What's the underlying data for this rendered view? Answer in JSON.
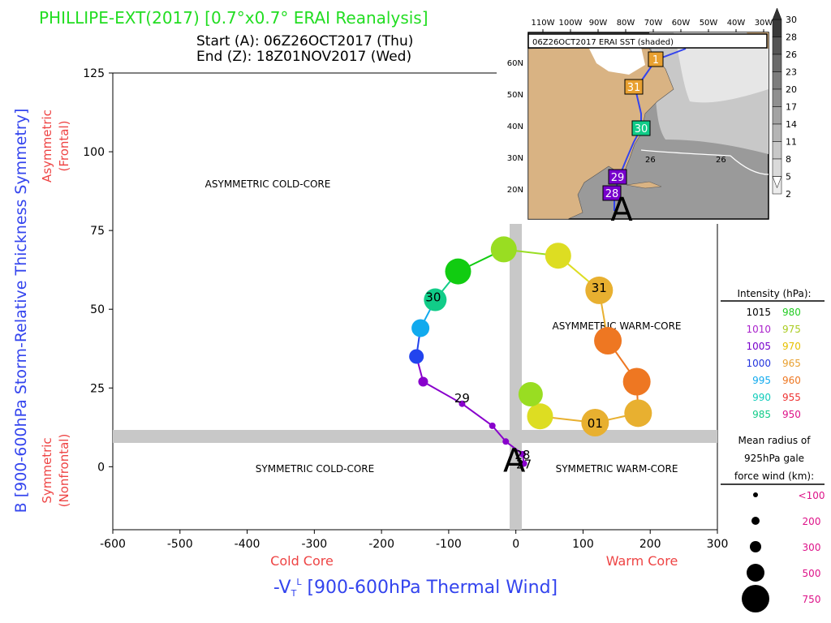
{
  "header": {
    "title": "PHILLIPE-EXT(2017) [0.7°x0.7° ERAI Reanalysis]",
    "start": "Start (A): 06Z26OCT2017 (Thu)",
    "end": "End (Z): 18Z01NOV2017 (Wed)"
  },
  "chart_data": {
    "type": "scatter",
    "title": "PHILLIPE-EXT(2017) [0.7°x0.7° ERAI Reanalysis]",
    "xlabel": "-VTL [900-600hPa Thermal Wind]",
    "xlabel_main": "-V",
    "xlabel_sub": "T",
    "xlabel_sup": "L",
    "xlabel_rest": " [900-600hPa Thermal Wind]",
    "ylabel": "B [900-600hPa Storm-Relative Thickness Symmetry]",
    "xlim": [
      -600,
      300
    ],
    "ylim": [
      -20,
      125
    ],
    "xticks": [
      -600,
      -500,
      -400,
      -300,
      -200,
      -100,
      0,
      100,
      200,
      300
    ],
    "yticks": [
      0,
      25,
      50,
      75,
      100,
      125
    ],
    "left_annotations": {
      "asym": "Asymmetric",
      "asym_sub": "(Frontal)",
      "sym": "Symmetric",
      "sym_sub": "(Nonfrontal)"
    },
    "bottom_annotations": {
      "cold": "Cold Core",
      "warm": "Warm Core"
    },
    "quadrants": {
      "asym_cold": "ASYMMETRIC COLD-CORE",
      "asym_warm": "ASYMMETRIC WARM-CORE",
      "sym_cold": "SYMMETRIC COLD-CORE",
      "sym_warm": "SYMMETRIC WARM-CORE"
    },
    "track": [
      {
        "x": 12,
        "y": 1,
        "r": 4,
        "color": "#8800cc"
      },
      {
        "x": 10,
        "y": 4,
        "r": 4,
        "color": "#8800cc"
      },
      {
        "x": -15,
        "y": 8,
        "r": 4,
        "color": "#8800cc"
      },
      {
        "x": -35,
        "y": 13,
        "r": 4,
        "color": "#8800cc"
      },
      {
        "x": -80,
        "y": 20,
        "r": 4,
        "color": "#8800cc"
      },
      {
        "x": -138,
        "y": 27,
        "r": 6,
        "color": "#8800cc"
      },
      {
        "x": -148,
        "y": 35,
        "r": 9,
        "color": "#2244ee"
      },
      {
        "x": -142,
        "y": 44,
        "r": 11,
        "color": "#11aaee"
      },
      {
        "x": -120,
        "y": 53,
        "r": 14,
        "color": "#11cc88"
      },
      {
        "x": -86,
        "y": 62,
        "r": 16,
        "color": "#11cc11"
      },
      {
        "x": -18,
        "y": 69,
        "r": 16,
        "color": "#99dd22"
      },
      {
        "x": 63,
        "y": 67,
        "r": 16,
        "color": "#dddd22"
      },
      {
        "x": 124,
        "y": 56,
        "r": 17,
        "color": "#e8b030"
      },
      {
        "x": 137,
        "y": 40,
        "r": 17,
        "color": "#ee7722"
      },
      {
        "x": 180,
        "y": 27,
        "r": 17,
        "color": "#ee7722"
      },
      {
        "x": 182,
        "y": 17,
        "r": 17,
        "color": "#e8b030"
      },
      {
        "x": 118,
        "y": 14,
        "r": 17,
        "color": "#e8b030"
      },
      {
        "x": 36,
        "y": 16,
        "r": 16,
        "color": "#dddd22"
      },
      {
        "x": 22,
        "y": 23,
        "r": 15,
        "color": "#99dd22"
      }
    ],
    "track_line_colors": [
      "#8800cc",
      "#8800cc",
      "#8800cc",
      "#8800cc",
      "#8800cc",
      "#8800cc",
      "#2244ee",
      "#11aaee",
      "#11cc88",
      "#11cc11",
      "#99dd22",
      "#dddd22",
      "#e8b030",
      "#ee7722",
      "#ee7722",
      "#e8b030",
      "#e8b030",
      "#dddd22"
    ],
    "date_labels": [
      {
        "text": "29",
        "x": -80,
        "y": 22
      },
      {
        "text": "30",
        "x": -123,
        "y": 54
      },
      {
        "text": "31",
        "x": 124,
        "y": 57
      },
      {
        "text": "01",
        "x": 118,
        "y": 14
      },
      {
        "text": "28",
        "x": 10,
        "y": 4
      },
      {
        "text": "27",
        "x": 12,
        "y": 1
      }
    ],
    "start_marker": {
      "text": "A",
      "x": 0,
      "y": 1
    }
  },
  "legend": {
    "intensity_title": "Intensity (hPa):",
    "intensity": [
      {
        "v1": "1015",
        "c1": "#000000",
        "v2": "980",
        "c2": "#22cc22"
      },
      {
        "v1": "1010",
        "c1": "#aa22cc",
        "v2": "975",
        "c2": "#aacc22"
      },
      {
        "v1": "1005",
        "c1": "#7700cc",
        "v2": "970",
        "c2": "#e6c000"
      },
      {
        "v1": "1000",
        "c1": "#2233dd",
        "v2": "965",
        "c2": "#e8a030"
      },
      {
        "v1": "995",
        "c1": "#11aaee",
        "v2": "960",
        "c2": "#ee7722"
      },
      {
        "v1": "990",
        "c1": "#11ccbb",
        "v2": "955",
        "c2": "#ee3333"
      },
      {
        "v1": "985",
        "c1": "#11cc88",
        "v2": "950",
        "c2": "#dd1188"
      }
    ],
    "radius_title_1": "Mean radius of",
    "radius_title_2": "925hPa gale",
    "radius_title_3": "force wind (km):",
    "radii": [
      {
        "label": "<100",
        "r": 3
      },
      {
        "label": "200",
        "r": 5
      },
      {
        "label": "300",
        "r": 7
      },
      {
        "label": "500",
        "r": 11
      },
      {
        "label": "750",
        "r": 17
      }
    ],
    "radius_color": "#dd1188"
  },
  "inset": {
    "title": "06Z26OCT2017 ERAI SST (shaded)",
    "lon_labels": [
      "110W",
      "100W",
      "90W",
      "80W",
      "70W",
      "60W",
      "50W",
      "40W",
      "30W"
    ],
    "lat_labels": [
      "60N",
      "50N",
      "40N",
      "30N",
      "20N"
    ],
    "sst_label": "26",
    "track_labels": [
      {
        "text": "1",
        "color": "#e8a030"
      },
      {
        "text": "31",
        "color": "#e8a030"
      },
      {
        "text": "30",
        "color": "#11cc88"
      },
      {
        "text": "29",
        "color": "#7700cc"
      },
      {
        "text": "28",
        "color": "#7700cc"
      }
    ],
    "start_marker": "A",
    "colorbar": [
      "30",
      "28",
      "26",
      "23",
      "20",
      "17",
      "14",
      "11",
      "8",
      "5",
      "2"
    ]
  }
}
